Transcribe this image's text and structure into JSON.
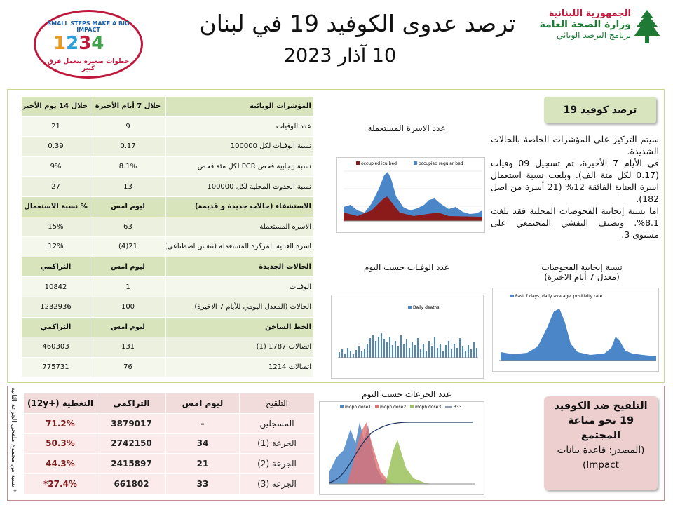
{
  "header": {
    "ministry": [
      "الجمهورية اللبنانية",
      "وزارة الصحة العامة",
      "برنامج الترصد الوبائي"
    ],
    "title": "ترصد عدوى الكوفيد 19 في لبنان",
    "date": "10 آذار 2023",
    "campaign": {
      "slogan": "SMALL STEPS MAKE A BIG IMPACT",
      "arabic": "خطوات صغيرة بتعمل فرق كبير"
    }
  },
  "indicators_table": {
    "groups": [
      {
        "header": [
          "المؤشرات الوبائية",
          "خلال 7 أيام الأخيرة",
          "خلال 14 يوم الأخيرة"
        ],
        "rows": [
          [
            "عدد الوفيات",
            "9",
            "21"
          ],
          [
            "نسبة الوفيات لكل 100000",
            "0.17",
            "0.39"
          ],
          [
            "نسبة إيجابية فحص PCR لكل مئة فحص",
            "8.1%",
            "9%"
          ],
          [
            "نسبة الحدوث المحلية لكل 100000",
            "13",
            "27"
          ]
        ]
      },
      {
        "header": [
          "الاستشفاء (حالات جديدة و قديمة)",
          "ليوم امس",
          "% نسبة الاستعمال"
        ],
        "rows": [
          [
            "الاسره المستعملة",
            "63",
            "15%"
          ],
          [
            "اسره العناية المركزه المستعملة (تنفس اصطناعي)",
            "21(4)",
            "12%"
          ]
        ]
      },
      {
        "header": [
          "الحالات الجديدة",
          "ليوم امس",
          "التراكمي"
        ],
        "rows": [
          [
            "الوفيات",
            "1",
            "10842"
          ],
          [
            "الحالات (المعدل اليومي للأيام 7 الاخيرة)",
            "100",
            "1232936"
          ]
        ]
      },
      {
        "header": [
          "الخط الساخن",
          "ليوم امس",
          "التراكمي"
        ],
        "rows": [
          [
            "اتصالات 1787 (1)",
            "131",
            "460303"
          ],
          [
            "اتصالات 1214",
            "76",
            "775731"
          ]
        ]
      }
    ]
  },
  "summary": {
    "title": "ترصد كوفيد 19",
    "paragraphs": [
      "سيتم التركيز على المؤشرات الخاصة بالحالات الشديدة.",
      "في الأيام 7 الأخيرة، تم تسجيل 09 وفيات (0.17 لكل مئة الف). وبلغت نسبة استعمال اسرة العناية الفائقة 12% (21 أسرة من اصل 182).",
      "اما نسبة إيجابية الفحوصات المحلية فقد بلغت 8.1%. ويصنف التفشي المجتمعي على مستوى 3."
    ]
  },
  "charts": {
    "beds": {
      "caption": "عدد الاسرة المستعملة",
      "legend": [
        "occupied icu bed",
        "occupied regular bed"
      ]
    },
    "deaths": {
      "caption": "عدد الوفيات حسب اليوم",
      "legend": [
        "Daily deaths"
      ]
    },
    "positivity": {
      "caption": [
        "نسبة إيجابية الفحوصات",
        "(معدل 7 أيام الاخيرة)"
      ],
      "legend": [
        "Past 7 days, daily average, positivity rate"
      ]
    },
    "doses": {
      "caption": "عدد الجرعات حسب اليوم",
      "legend": [
        "moph dose1",
        "moph dose2",
        "moph dose3",
        "333"
      ]
    }
  },
  "vaccination_table": {
    "header": [
      "التلقيح",
      "ليوم امس",
      "التراكمي",
      "التغطية (+12y)"
    ],
    "rows": [
      [
        "المسجلين",
        "-",
        "3879017",
        "71.2%"
      ],
      [
        "الجرعة (1)",
        "34",
        "2742150",
        "50.3%"
      ],
      [
        "الجرعة (2)",
        "21",
        "2415897",
        "44.3%"
      ],
      [
        "الجرعة (3)",
        "33",
        "661802",
        "27.4%*"
      ]
    ]
  },
  "footnote": "* نسبة من مجموع ملقحي الجرعة الثانية",
  "vaccination_box": {
    "title": "التلقيح ضد الكوفيد 19 نحو مناعة المجتمع",
    "source": "(المصدر: قاعدة بيانات Impact)"
  }
}
